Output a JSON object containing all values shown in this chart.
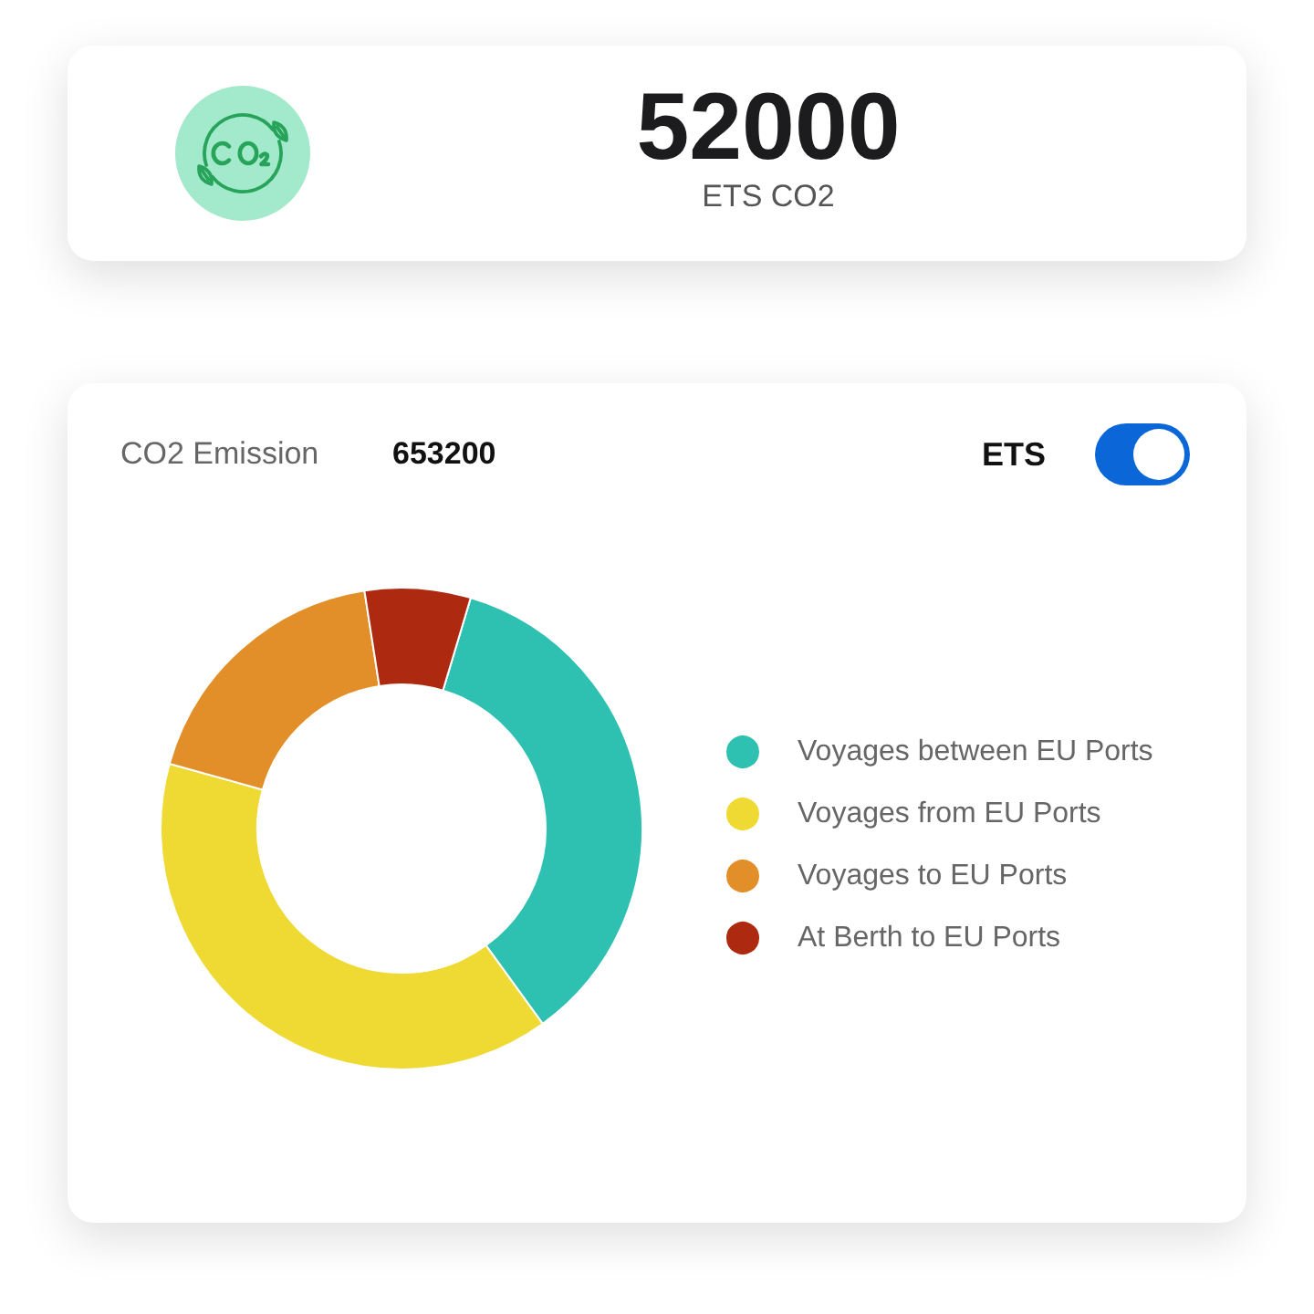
{
  "chart_data": {
    "type": "donut",
    "categories": [
      "Voyages between EU Ports",
      "Voyages from EU Ports",
      "Voyages to EU Ports",
      "At Berth to EU Ports"
    ],
    "values": [
      35.4,
      39.3,
      18.2,
      7.1
    ],
    "colors": [
      "#2ec1b1",
      "#efd933",
      "#e38f29",
      "#ad2a10"
    ],
    "legend": "right",
    "annotations": [
      "52000",
      "ETS CO2",
      "CO2 Emission",
      "653200",
      "ETS"
    ]
  }
}
